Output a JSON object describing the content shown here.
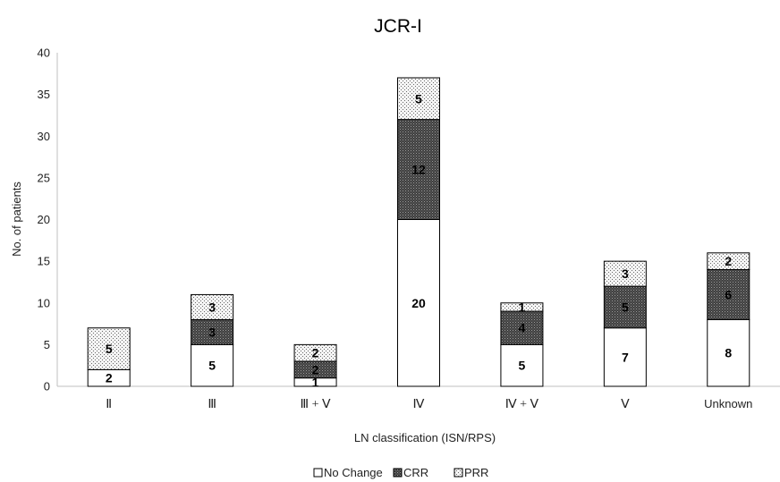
{
  "chart_data": {
    "type": "bar",
    "stacked": true,
    "title": "JCR-I",
    "xlabel": "LN classification (ISN/RPS)",
    "ylabel": "No. of patients",
    "ylim": [
      0,
      40
    ],
    "yticks": [
      0,
      5,
      10,
      15,
      20,
      25,
      30,
      35,
      40
    ],
    "grid": false,
    "legend_position": "bottom",
    "categories": [
      "Ⅱ",
      "Ⅲ",
      "Ⅲ + Ⅴ",
      "Ⅳ",
      "Ⅳ + Ⅴ",
      "Ⅴ",
      "Unknown"
    ],
    "series": [
      {
        "name": "No Change",
        "values": [
          2,
          5,
          1,
          20,
          5,
          7,
          8
        ],
        "fill": "#ffffff"
      },
      {
        "name": "CRR",
        "values": [
          0,
          3,
          2,
          12,
          4,
          5,
          6
        ],
        "fill": "#595959"
      },
      {
        "name": "PRR",
        "values": [
          5,
          3,
          2,
          5,
          1,
          3,
          2
        ],
        "fill": "#f2f2f2"
      }
    ]
  }
}
